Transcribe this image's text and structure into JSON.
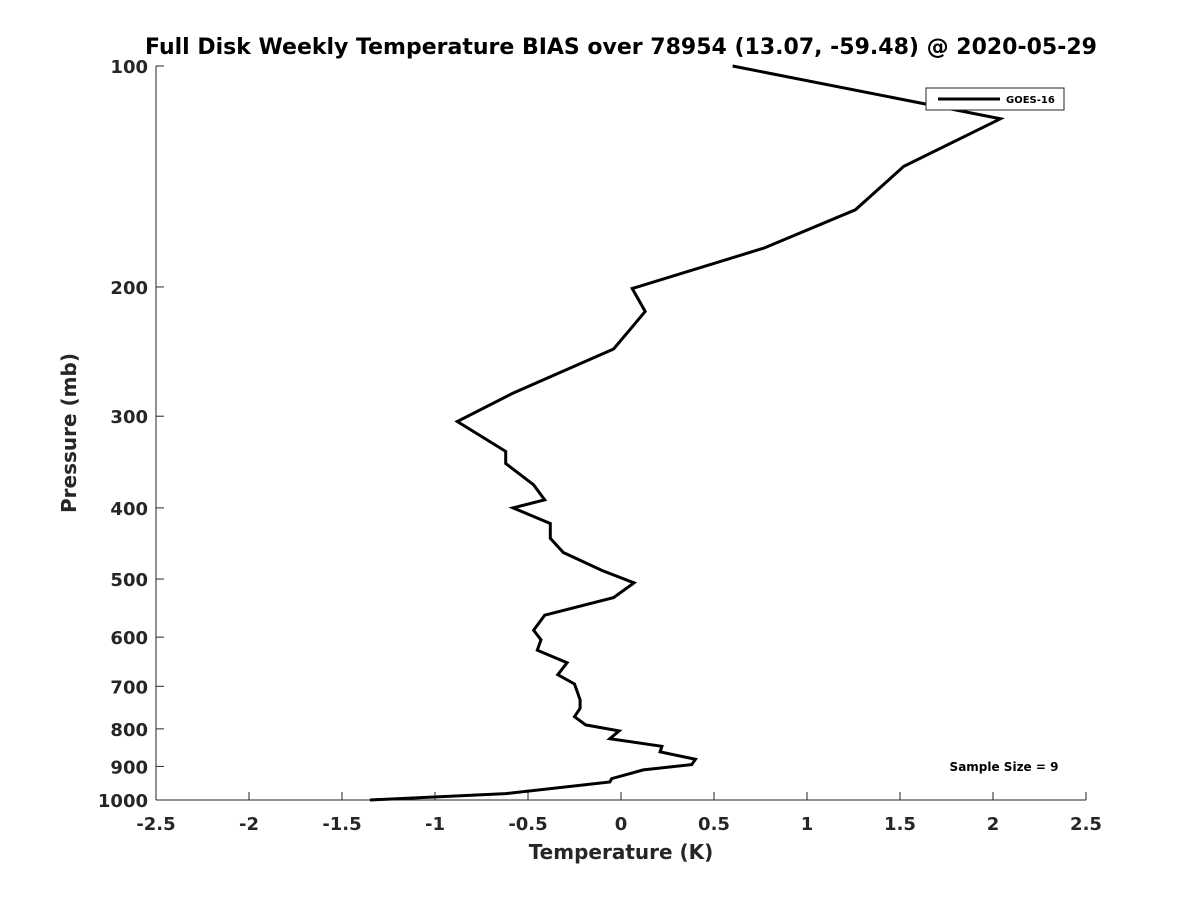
{
  "chart_data": {
    "type": "line",
    "title": "Full Disk Weekly Temperature BIAS over 78954 (13.07, -59.48) @ 2020-05-29",
    "xlabel": "Temperature (K)",
    "ylabel": "Pressure (mb)",
    "xlim": [
      -2.5,
      2.5
    ],
    "ylim": [
      100,
      1000
    ],
    "y_scale": "log",
    "y_reversed": true,
    "grid": false,
    "legend_position": "top-right",
    "x_ticks": [
      -2.5,
      -2,
      -1.5,
      -1,
      -0.5,
      0,
      0.5,
      1,
      1.5,
      2,
      2.5
    ],
    "x_tick_labels": [
      "-2.5",
      "-2",
      "-1.5",
      "-1",
      "-0.5",
      "0",
      "0.5",
      "1",
      "1.5",
      "2",
      "2.5"
    ],
    "y_ticks": [
      100,
      200,
      300,
      400,
      500,
      600,
      700,
      800,
      900,
      1000
    ],
    "y_tick_labels": [
      "100",
      "200",
      "300",
      "400",
      "500",
      "600",
      "700",
      "800",
      "900",
      "1000"
    ],
    "annotation": "Sample Size = 9",
    "series": [
      {
        "name": "GOES-16",
        "color": "#000000",
        "x": [
          0.6,
          2.04,
          1.52,
          1.26,
          0.77,
          0.06,
          0.13,
          -0.04,
          -0.58,
          -0.88,
          -0.62,
          -0.62,
          -0.47,
          -0.41,
          -0.58,
          -0.38,
          -0.38,
          -0.31,
          -0.1,
          0.07,
          -0.04,
          -0.41,
          -0.47,
          -0.43,
          -0.45,
          -0.29,
          -0.34,
          -0.25,
          -0.22,
          -0.22,
          -0.25,
          -0.19,
          -0.01,
          -0.06,
          0.22,
          0.21,
          0.4,
          0.38,
          0.12,
          -0.05,
          -0.06,
          -0.62,
          -1.35
        ],
        "y": [
          100,
          118,
          137,
          157,
          177,
          201,
          216,
          243,
          279,
          305,
          335,
          348,
          372,
          390,
          400,
          420,
          440,
          460,
          487,
          506,
          530,
          560,
          587,
          605,
          625,
          650,
          675,
          695,
          730,
          750,
          770,
          790,
          805,
          825,
          845,
          860,
          880,
          895,
          910,
          935,
          945,
          980,
          1000
        ]
      }
    ]
  }
}
